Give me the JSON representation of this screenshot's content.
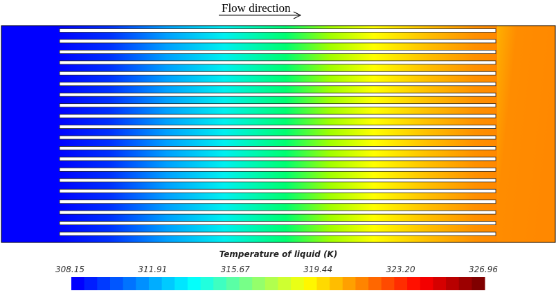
{
  "annotation": "Flow direction",
  "colorbar": {
    "title": "Temperature of liquid (K)",
    "ticks": [
      "308.15",
      "311.91",
      "315.67",
      "319.44",
      "323.20",
      "326.96"
    ]
  }
}
